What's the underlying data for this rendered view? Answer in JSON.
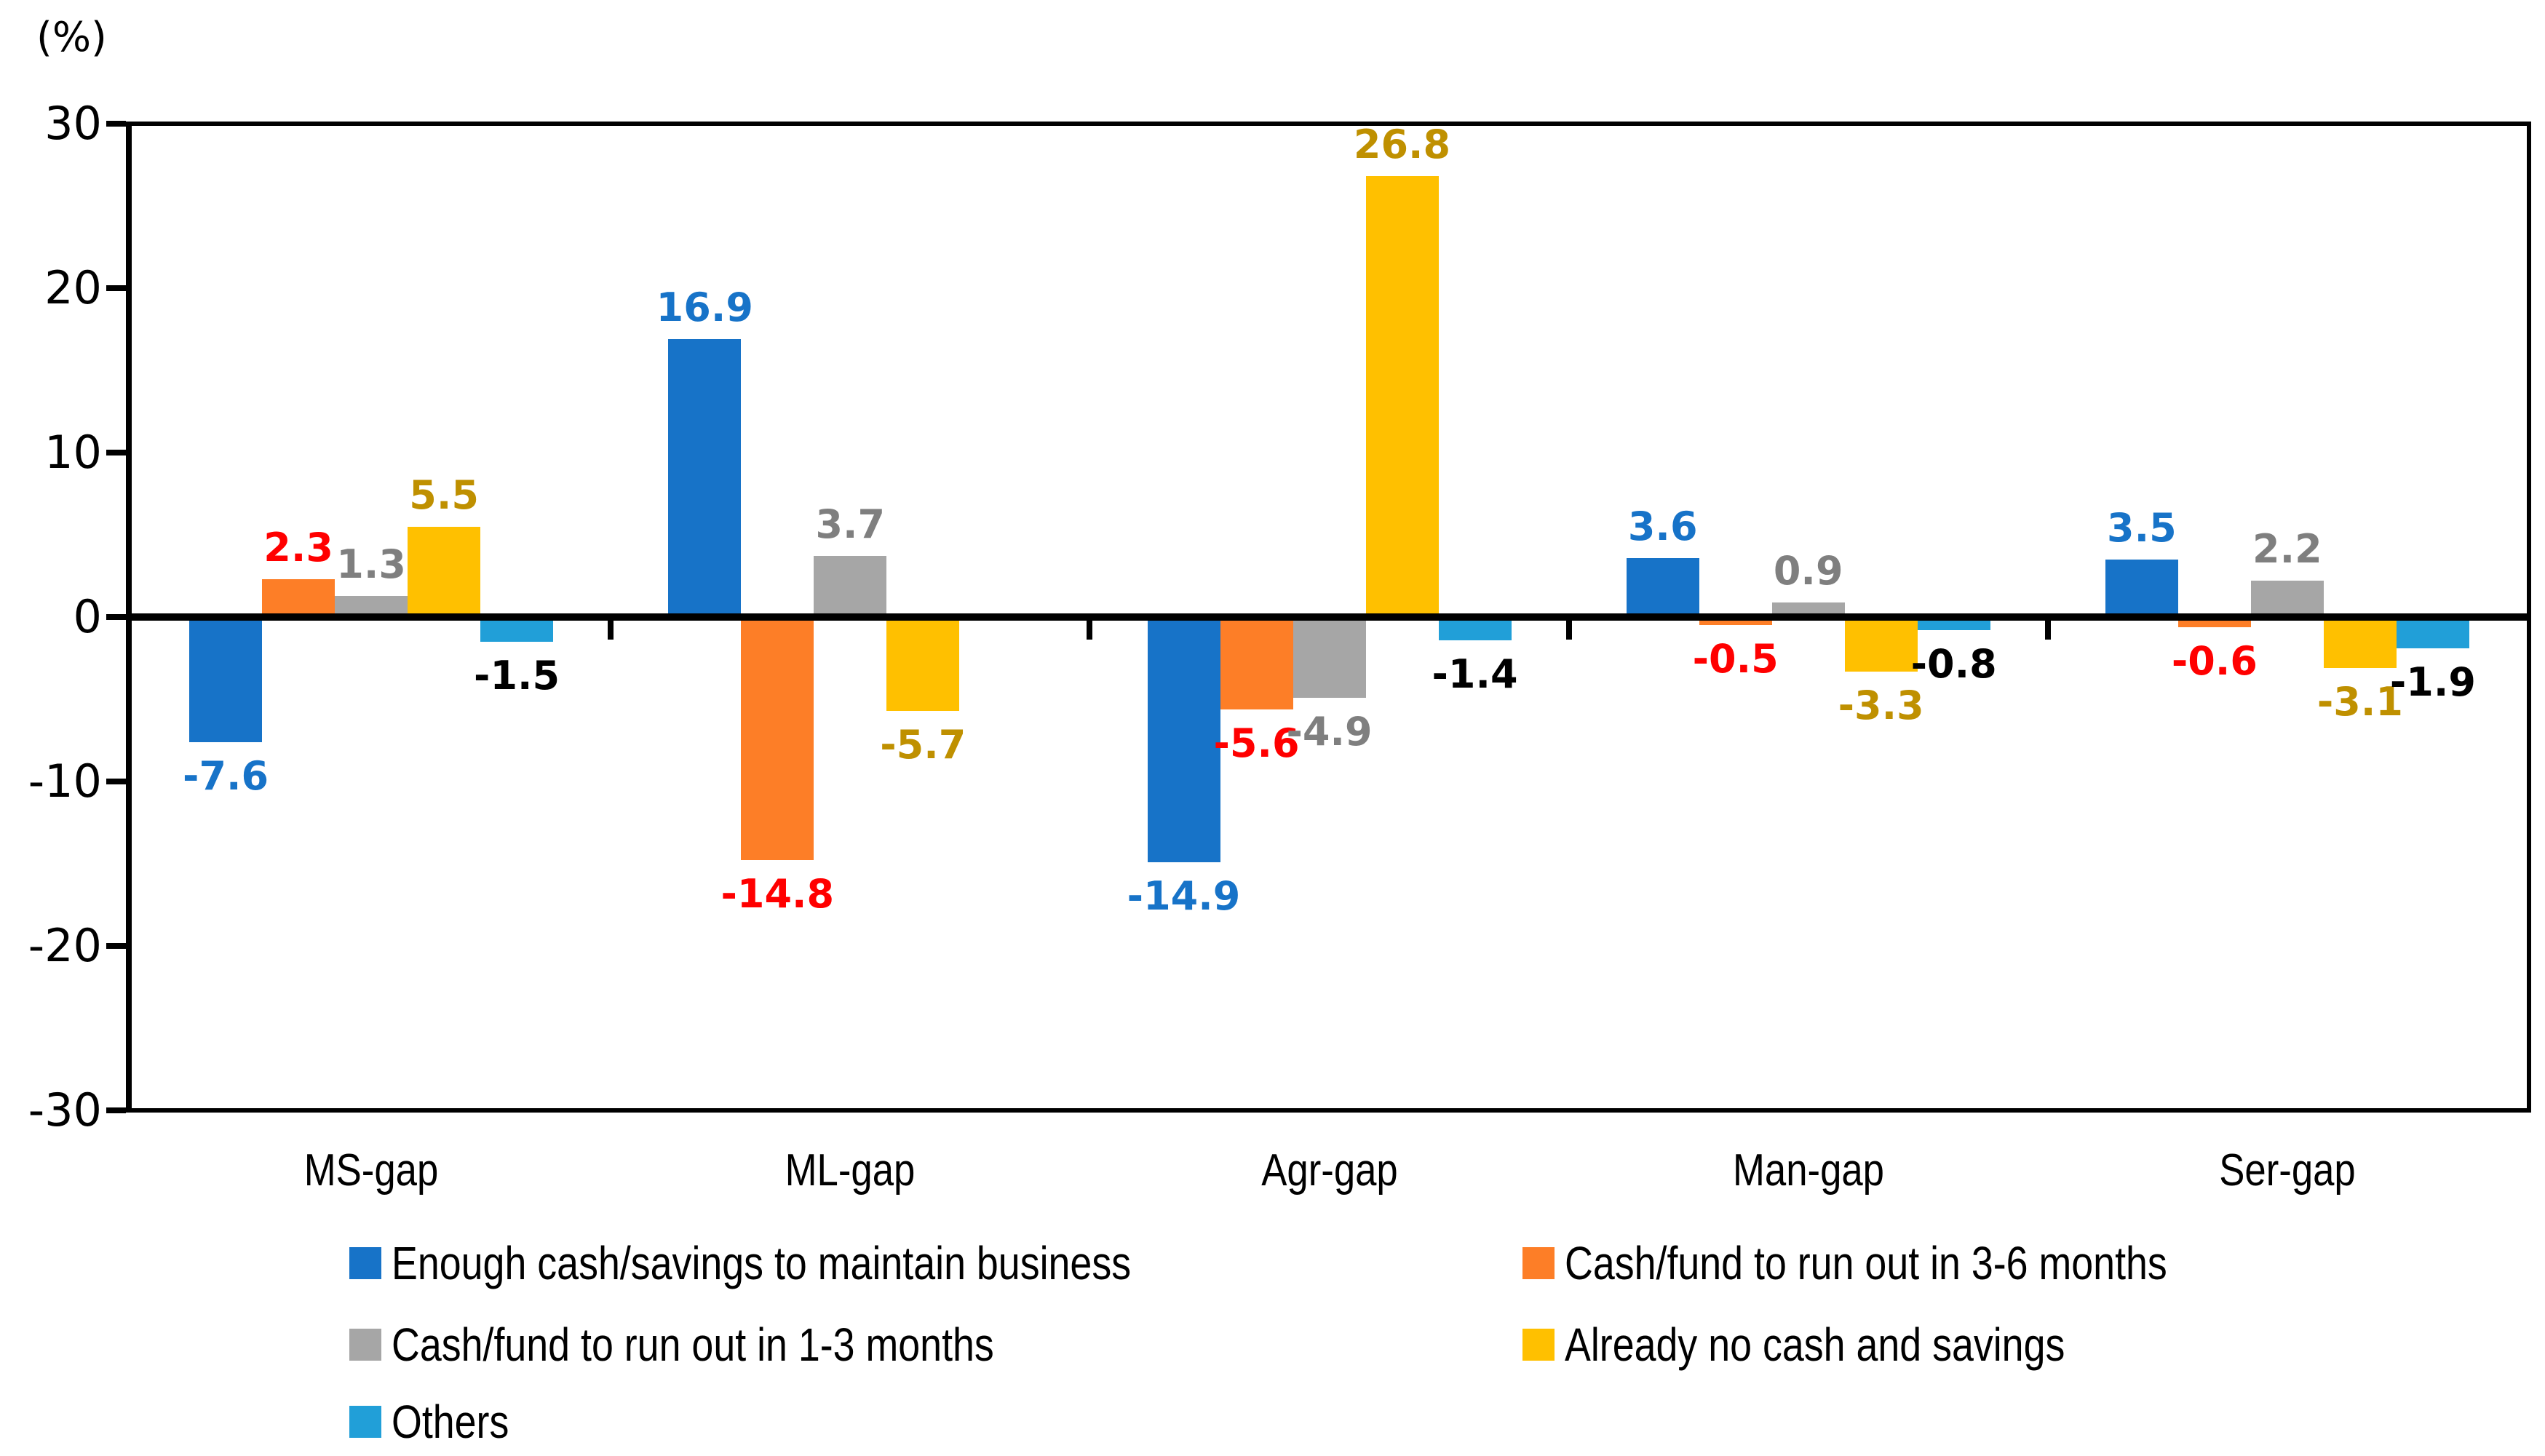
{
  "axis": {
    "unit_label": "(%)",
    "y_ticks": [
      30,
      20,
      10,
      0,
      -10,
      -20,
      -30
    ]
  },
  "chart_data": {
    "type": "bar",
    "title": "",
    "xlabel": "",
    "ylabel": "(%)",
    "ylim": [
      -30,
      30
    ],
    "y_tick_step": 10,
    "grid": false,
    "legend_position": "bottom",
    "categories": [
      "MS-gap",
      "ML-gap",
      "Agr-gap",
      "Man-gap",
      "Ser-gap"
    ],
    "series": [
      {
        "name": "Enough cash/savings to maintain business",
        "color": "#1773C8",
        "label_color": "#1773C8",
        "values": [
          -7.6,
          16.9,
          -14.9,
          3.6,
          3.5
        ]
      },
      {
        "name": "Cash/fund to run out in 3-6 months",
        "color": "#FD7E27",
        "label_color": "#FF0000",
        "values": [
          2.3,
          -14.8,
          -5.6,
          -0.5,
          -0.6
        ]
      },
      {
        "name": "Cash/fund to run out in 1-3 months",
        "color": "#A6A6A6",
        "label_color": "#7F7F7F",
        "values": [
          1.3,
          3.7,
          -4.9,
          0.9,
          2.2
        ]
      },
      {
        "name": "Already no cash and savings",
        "color": "#FFC000",
        "label_color": "#BF9000",
        "values": [
          5.5,
          -5.7,
          26.8,
          -3.3,
          -3.1
        ]
      },
      {
        "name": "Others",
        "color": "#219FD8",
        "label_color": "#000000",
        "values": [
          -1.5,
          null,
          -1.4,
          -0.8,
          -1.9
        ]
      }
    ]
  },
  "legend": {
    "items": [
      "Enough cash/savings to maintain business",
      "Cash/fund to run out in 3-6 months",
      "Cash/fund to run out in 1-3 months",
      "Already no cash and savings",
      "Others"
    ]
  }
}
